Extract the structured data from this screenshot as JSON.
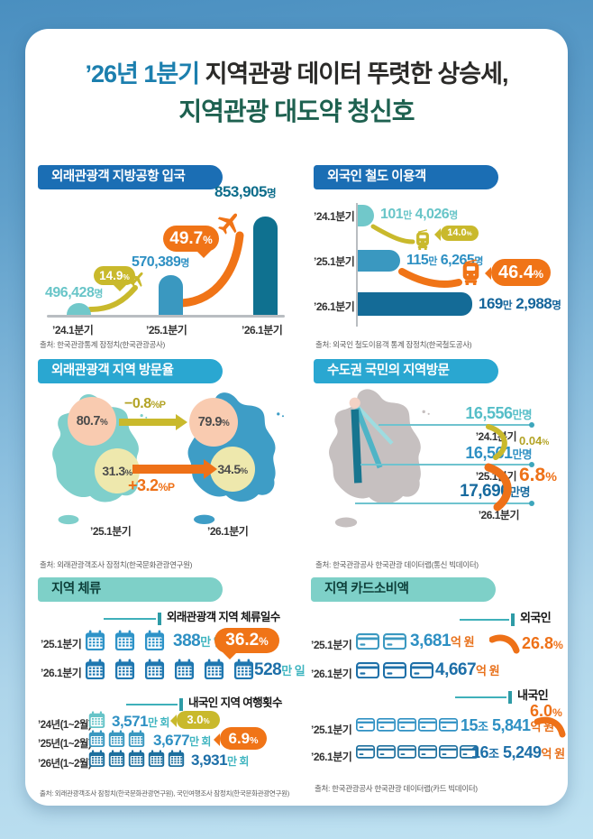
{
  "title": {
    "highlight": "’26년 1분기",
    "rest": " 지역관광 데이터 뚜렷한 상승세,",
    "line2": "지역관광 대도약 청신호"
  },
  "panels": {
    "airport": {
      "header": "외래관광객 지방공항 입국",
      "bars": [
        {
          "period": "’24.1분기",
          "num": "496,428",
          "unit": "명"
        },
        {
          "period": "’25.1분기",
          "num": "570,389",
          "unit": "명"
        },
        {
          "period": "’26.1분기",
          "num": "853,905",
          "unit": "명"
        }
      ],
      "g1": {
        "num": "14.9",
        "unit": "%"
      },
      "g2": {
        "num": "49.7",
        "unit": "%"
      },
      "source": "출처: 한국관광통계 잠정치(한국관광공사)"
    },
    "rail": {
      "header": "외국인 철도 이용객",
      "rows": [
        {
          "period": "’24.1분기",
          "n1": "101",
          "u1": "만",
          "n2": " 4,026",
          "u2": "명"
        },
        {
          "period": "’25.1분기",
          "n1": "115",
          "u1": "만",
          "n2": " 6,265",
          "u2": "명"
        },
        {
          "period": "’26.1분기",
          "n1": "169",
          "u1": "만",
          "n2": " 2,988",
          "u2": "명"
        }
      ],
      "g1": {
        "num": "14.0",
        "unit": "%"
      },
      "g2": {
        "num": "46.4",
        "unit": "%"
      },
      "source": "출처: 외국인 철도이용객 통계 잠정치(한국철도공사)"
    },
    "visitrate": {
      "header": "외래관광객 지역 방문율",
      "top_left": "80.7",
      "bot_left": "31.3",
      "top_right": "79.9",
      "bot_right": "34.5",
      "pct": "%",
      "chg1": {
        "num": "−0.8",
        "unit": "%P"
      },
      "chg2": {
        "num": "+3.2",
        "unit": "%P"
      },
      "period_left": "’25.1분기",
      "period_right": "’26.1분기",
      "source": "출처: 외래관광객조사 잠정치(한국문화관광연구원)"
    },
    "metro": {
      "header": "수도권 국민의 지역방문",
      "rows": [
        {
          "num": "16,556",
          "unit": "만명",
          "period": "’24.1분기"
        },
        {
          "num": "16,561",
          "unit": "만명",
          "period": "’25.1분기"
        },
        {
          "num": "17,690",
          "unit": "만명",
          "period": "’26.1분기"
        }
      ],
      "g1": {
        "num": "0.04",
        "unit": "%"
      },
      "g2": {
        "num": "6.8",
        "unit": "%"
      },
      "source": "출처: 한국관광공사 한국관광 데이터랩(통신 빅데이터)"
    },
    "stay": {
      "header": "지역 체류",
      "sub1": "외래관광객 지역 체류일수",
      "rows1": [
        {
          "period": "’25.1분기",
          "icons": 3,
          "num": "388",
          "unit": "만 일"
        },
        {
          "period": "’26.1분기",
          "icons": 6,
          "num": "528",
          "unit": "만 일"
        }
      ],
      "g1": {
        "num": "36.2",
        "unit": "%"
      },
      "sub2": "내국인 지역 여행횟수",
      "rows2": [
        {
          "period": "’24년(1~2월)",
          "icons": 1,
          "num": "3,571",
          "unit": "만 회"
        },
        {
          "period": "’25년(1~2월)",
          "icons": 3,
          "num": "3,677",
          "unit": "만 회"
        },
        {
          "period": "’26년(1~2월)",
          "icons": 5,
          "num": "3,931",
          "unit": "만 회"
        }
      ],
      "g2": {
        "num": "3.0",
        "unit": "%"
      },
      "g3": {
        "num": "6.9",
        "unit": "%"
      },
      "source": "출처: 외래관광객조사 잠정치(한국문화관광연구원), 국민여행조사 잠정치(한국문화관광연구원)"
    },
    "card": {
      "header": "지역 카드소비액",
      "sub1": "외국인",
      "rows1": [
        {
          "period": "’25.1분기",
          "icons": 2,
          "num": "3,681",
          "unit": "억 원"
        },
        {
          "period": "’26.1분기",
          "icons": 3,
          "num": "4,667",
          "unit": "억 원"
        }
      ],
      "g1": {
        "num": "26.8",
        "unit": "%"
      },
      "sub2": "내국인",
      "g2": {
        "num": "6.0",
        "unit": "%"
      },
      "rows2": [
        {
          "period": "’25.1분기",
          "icons": 5,
          "n1": "15",
          "u1": "조",
          "n2": " 5,841",
          "u2": "억 원"
        },
        {
          "period": "’26.1분기",
          "icons": 6,
          "n1": "16",
          "u1": "조",
          "n2": " 5,249",
          "u2": "억 원"
        }
      ],
      "source": "출처: 한국관광공사 한국관광 데이터랩(카드 빅데이터)"
    }
  },
  "chart_data": [
    {
      "type": "bar",
      "title": "외래관광객 지방공항 입국",
      "categories": [
        "'24.1분기",
        "'25.1분기",
        "'26.1분기"
      ],
      "values": [
        496428,
        570389,
        853905
      ],
      "unit": "명",
      "growth_labels": [
        "+14.9%",
        "+49.7%"
      ],
      "source": "출처: 한국관광통계 잠정치(한국관광공사)"
    },
    {
      "type": "bar",
      "orientation": "horizontal",
      "title": "외국인 철도 이용객",
      "categories": [
        "'24.1분기",
        "'25.1분기",
        "'26.1분기"
      ],
      "values": [
        1014026,
        1156265,
        1692988
      ],
      "unit": "명",
      "growth_labels": [
        "+14.0%",
        "+46.4%"
      ],
      "source": "출처: 외국인 철도이용객 통계 잠정치(한국철도공사)"
    },
    {
      "type": "map",
      "title": "외래관광객 지역 방문율",
      "categories": [
        "'25.1분기",
        "'26.1분기"
      ],
      "series": [
        {
          "name": "상단(수도권) 방문율 %",
          "values": [
            80.7,
            79.9
          ],
          "change": "−0.8%P"
        },
        {
          "name": "하단(지방) 방문율 %",
          "values": [
            31.3,
            34.5
          ],
          "change": "+3.2%P"
        }
      ],
      "source": "출처: 외래관광객조사 잠정치(한국문화관광연구원)"
    },
    {
      "type": "map",
      "title": "수도권 국민의 지역방문",
      "categories": [
        "'24.1분기",
        "'25.1분기",
        "'26.1분기"
      ],
      "values": [
        16556,
        16561,
        17690
      ],
      "unit": "만명",
      "growth_labels": [
        "+0.04%",
        "+6.8%"
      ],
      "source": "출처: 한국관광공사 한국관광 데이터랩(통신 빅데이터)"
    },
    {
      "type": "pictogram",
      "title": "지역 체류",
      "series": [
        {
          "name": "외래관광객 지역 체류일수",
          "categories": [
            "'25.1분기",
            "'26.1분기"
          ],
          "values": [
            388,
            528
          ],
          "unit": "만 일",
          "growth_labels": [
            "+36.2%"
          ]
        },
        {
          "name": "내국인 지역 여행횟수",
          "categories": [
            "'24년(1~2월)",
            "'25년(1~2월)",
            "'26년(1~2월)"
          ],
          "values": [
            3571,
            3677,
            3931
          ],
          "unit": "만 회",
          "growth_labels": [
            "+3.0%",
            "+6.9%"
          ]
        }
      ],
      "source": "출처: 외래관광객조사 잠정치(한국문화관광연구원), 국민여행조사 잠정치(한국문화관광연구원)"
    },
    {
      "type": "pictogram",
      "title": "지역 카드소비액",
      "series": [
        {
          "name": "외국인",
          "categories": [
            "'25.1분기",
            "'26.1분기"
          ],
          "values": [
            3681,
            4667
          ],
          "unit": "억 원",
          "growth_labels": [
            "+26.8%"
          ]
        },
        {
          "name": "내국인",
          "categories": [
            "'25.1분기",
            "'26.1분기"
          ],
          "values": [
            155841,
            165249
          ],
          "unit": "억 원",
          "display": [
            "15조 5,841억 원",
            "16조 5,249억 원"
          ],
          "growth_labels": [
            "+6.0%"
          ]
        }
      ],
      "source": "출처: 한국관광공사 한국관광 데이터랩(카드 빅데이터)"
    }
  ]
}
